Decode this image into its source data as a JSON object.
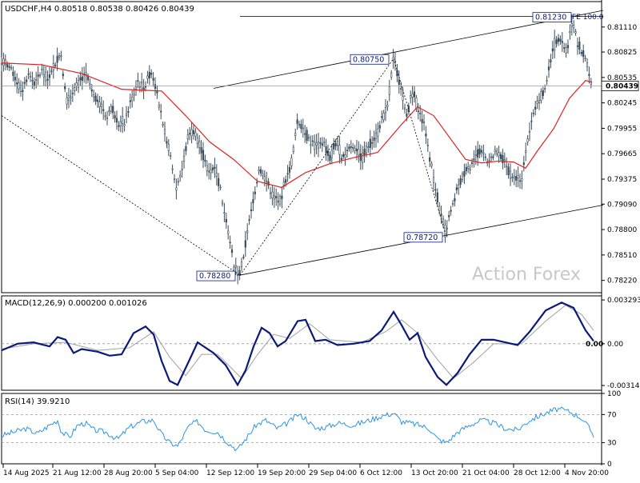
{
  "chart_data": {
    "type": "candlestick",
    "price_panel": {
      "header": "USDCHF,H4 0.80518 0.80538 0.80426 0.80439",
      "ylim": [
        0.7808,
        0.814
      ],
      "y_ticks": [
        "0.81110",
        "0.80825",
        "0.80535",
        "0.80245",
        "0.79955",
        "0.79665",
        "0.79375",
        "0.79090",
        "0.78800",
        "0.78510",
        "0.78220"
      ],
      "y_tick_values": [
        0.8111,
        0.80825,
        0.80535,
        0.80245,
        0.79955,
        0.79665,
        0.79375,
        0.7909,
        0.788,
        0.7851,
        0.7822
      ],
      "current_price": "0.80439",
      "current_price_value": 0.80439,
      "watermark": "Action Forex",
      "annotations": {
        "low": "0.78280",
        "high_mid": "0.80750",
        "low_mid": "0.78720",
        "high": "0.81230",
        "fe_label": "FE 100.0"
      },
      "series_path": [
        [
          0,
          0.8072
        ],
        [
          6,
          0.807
        ],
        [
          12,
          0.8062
        ],
        [
          19,
          0.8048
        ],
        [
          26,
          0.8038
        ],
        [
          34,
          0.8058
        ],
        [
          42,
          0.8045
        ],
        [
          50,
          0.8062
        ],
        [
          58,
          0.805
        ],
        [
          66,
          0.8068
        ],
        [
          74,
          0.8082
        ],
        [
          82,
          0.8025
        ],
        [
          90,
          0.804
        ],
        [
          98,
          0.8048
        ],
        [
          106,
          0.8056
        ],
        [
          114,
          0.8032
        ],
        [
          122,
          0.8028
        ],
        [
          130,
          0.801
        ],
        [
          138,
          0.802
        ],
        [
          146,
          0.8
        ],
        [
          154,
          0.8004
        ],
        [
          162,
          0.8026
        ],
        [
          170,
          0.805
        ],
        [
          178,
          0.8042
        ],
        [
          186,
          0.8062
        ],
        [
          194,
          0.804
        ],
        [
          202,
          0.7995
        ],
        [
          210,
          0.7968
        ],
        [
          218,
          0.7928
        ],
        [
          226,
          0.795
        ],
        [
          234,
          0.799
        ],
        [
          242,
          0.7992
        ],
        [
          250,
          0.797
        ],
        [
          258,
          0.7945
        ],
        [
          266,
          0.7952
        ],
        [
          274,
          0.7925
        ],
        [
          282,
          0.7885
        ],
        [
          290,
          0.784
        ],
        [
          298,
          0.7829
        ],
        [
          306,
          0.787
        ],
        [
          314,
          0.791
        ],
        [
          322,
          0.795
        ],
        [
          330,
          0.7938
        ],
        [
          338,
          0.792
        ],
        [
          346,
          0.791
        ],
        [
          354,
          0.7932
        ],
        [
          362,
          0.7955
        ],
        [
          370,
          0.8005
        ],
        [
          378,
          0.7995
        ],
        [
          386,
          0.798
        ],
        [
          394,
          0.7975
        ],
        [
          402,
          0.7982
        ],
        [
          410,
          0.796
        ],
        [
          418,
          0.798
        ],
        [
          426,
          0.7965
        ],
        [
          434,
          0.7972
        ],
        [
          442,
          0.7976
        ],
        [
          450,
          0.796
        ],
        [
          458,
          0.7975
        ],
        [
          466,
          0.7985
        ],
        [
          474,
          0.8
        ],
        [
          482,
          0.802
        ],
        [
          490,
          0.8075
        ],
        [
          498,
          0.8045
        ],
        [
          506,
          0.801
        ],
        [
          514,
          0.8035
        ],
        [
          522,
          0.8015
        ],
        [
          530,
          0.799
        ],
        [
          538,
          0.795
        ],
        [
          546,
          0.791
        ],
        [
          554,
          0.7878
        ],
        [
          562,
          0.79
        ],
        [
          570,
          0.7925
        ],
        [
          578,
          0.7945
        ],
        [
          586,
          0.7955
        ],
        [
          594,
          0.7965
        ],
        [
          602,
          0.7968
        ],
        [
          610,
          0.7958
        ],
        [
          618,
          0.7968
        ],
        [
          626,
          0.796
        ],
        [
          634,
          0.7948
        ],
        [
          642,
          0.7935
        ],
        [
          650,
          0.7938
        ],
        [
          658,
          0.7985
        ],
        [
          666,
          0.802
        ],
        [
          674,
          0.8032
        ],
        [
          682,
          0.8048
        ],
        [
          690,
          0.8092
        ],
        [
          698,
          0.8098
        ],
        [
          706,
          0.8085
        ],
        [
          714,
          0.8118
        ],
        [
          722,
          0.8088
        ],
        [
          730,
          0.8075
        ],
        [
          738,
          0.8044
        ]
      ],
      "ma_path": [
        [
          0,
          0.807
        ],
        [
          50,
          0.8068
        ],
        [
          100,
          0.8058
        ],
        [
          150,
          0.804
        ],
        [
          200,
          0.8038
        ],
        [
          230,
          0.801
        ],
        [
          260,
          0.798
        ],
        [
          290,
          0.796
        ],
        [
          320,
          0.7935
        ],
        [
          350,
          0.7928
        ],
        [
          380,
          0.7945
        ],
        [
          410,
          0.7955
        ],
        [
          440,
          0.7962
        ],
        [
          470,
          0.7968
        ],
        [
          500,
          0.8
        ],
        [
          520,
          0.802
        ],
        [
          540,
          0.801
        ],
        [
          560,
          0.7985
        ],
        [
          580,
          0.796
        ],
        [
          600,
          0.7956
        ],
        [
          620,
          0.7958
        ],
        [
          640,
          0.7957
        ],
        [
          655,
          0.795
        ],
        [
          670,
          0.797
        ],
        [
          690,
          0.7995
        ],
        [
          710,
          0.803
        ],
        [
          730,
          0.805
        ],
        [
          738,
          0.8048
        ]
      ],
      "zigzag": [
        {
          "from": [
            0,
            0.801
          ],
          "to": [
            298,
            0.7828
          ]
        },
        {
          "from": [
            298,
            0.7828
          ],
          "to": [
            490,
            0.8075
          ]
        },
        {
          "from": [
            490,
            0.8075
          ],
          "to": [
            556,
            0.7872
          ]
        }
      ],
      "channel_upper": {
        "from": [
          265,
          0.8041
        ],
        "to": [
          752,
          0.813
        ]
      },
      "channel_lower": {
        "from": [
          298,
          0.7828
        ],
        "to": [
          752,
          0.7908
        ]
      },
      "fe_level": {
        "from": [
          298,
          0.8123
        ],
        "to": [
          752,
          0.8123
        ]
      }
    },
    "macd_panel": {
      "header": "MACD(12,26,9) 0.000200 0.001026",
      "ylim": [
        -0.0035,
        0.0036
      ],
      "y_ticks": [
        "0.003293",
        "0.00",
        "-0.003142"
      ],
      "y_tick_values": [
        0.003293,
        0,
        -0.003142
      ],
      "side_value": "0.00",
      "main_path": [
        [
          0,
          -0.0005
        ],
        [
          20,
          0.0
        ],
        [
          40,
          0.0001
        ],
        [
          60,
          -0.0002
        ],
        [
          70,
          0.0005
        ],
        [
          80,
          0.0003
        ],
        [
          90,
          -0.0007
        ],
        [
          100,
          -0.0004
        ],
        [
          120,
          -0.0006
        ],
        [
          135,
          -0.0009
        ],
        [
          150,
          -0.0008
        ],
        [
          165,
          0.0008
        ],
        [
          180,
          0.0013
        ],
        [
          190,
          0.0007
        ],
        [
          200,
          -0.0013
        ],
        [
          210,
          -0.0028
        ],
        [
          220,
          -0.0031
        ],
        [
          235,
          -0.0012
        ],
        [
          245,
          0.0001
        ],
        [
          255,
          -0.0003
        ],
        [
          265,
          -0.0007
        ],
        [
          280,
          -0.0016
        ],
        [
          295,
          -0.0031
        ],
        [
          305,
          -0.002
        ],
        [
          315,
          -0.0002
        ],
        [
          325,
          0.0012
        ],
        [
          335,
          0.0008
        ],
        [
          345,
          -0.0002
        ],
        [
          355,
          0.0002
        ],
        [
          370,
          0.0017
        ],
        [
          380,
          0.0018
        ],
        [
          392,
          0.0002
        ],
        [
          405,
          0.0003
        ],
        [
          420,
          -0.0001
        ],
        [
          440,
          0.0
        ],
        [
          460,
          0.0002
        ],
        [
          475,
          0.001
        ],
        [
          490,
          0.0024
        ],
        [
          500,
          0.0014
        ],
        [
          510,
          0.0003
        ],
        [
          520,
          0.0008
        ],
        [
          530,
          -0.001
        ],
        [
          545,
          -0.0025
        ],
        [
          556,
          -0.0031
        ],
        [
          570,
          -0.0022
        ],
        [
          585,
          -0.0008
        ],
        [
          600,
          0.0003
        ],
        [
          615,
          0.0003
        ],
        [
          630,
          0.0001
        ],
        [
          645,
          -0.0001
        ],
        [
          660,
          0.0009
        ],
        [
          680,
          0.0025
        ],
        [
          700,
          0.0031
        ],
        [
          715,
          0.0027
        ],
        [
          730,
          0.001
        ],
        [
          740,
          0.0002
        ]
      ],
      "signal_path": [
        [
          0,
          -0.0004
        ],
        [
          40,
          0.0
        ],
        [
          80,
          0.0001
        ],
        [
          120,
          -0.0005
        ],
        [
          160,
          -0.0003
        ],
        [
          190,
          0.0009
        ],
        [
          210,
          -0.001
        ],
        [
          230,
          -0.0024
        ],
        [
          250,
          -0.0008
        ],
        [
          270,
          -0.0008
        ],
        [
          300,
          -0.0026
        ],
        [
          320,
          -0.0008
        ],
        [
          340,
          0.0007
        ],
        [
          360,
          0.0004
        ],
        [
          385,
          0.0015
        ],
        [
          410,
          0.0003
        ],
        [
          450,
          0.0001
        ],
        [
          480,
          0.0009
        ],
        [
          500,
          0.0018
        ],
        [
          520,
          0.0008
        ],
        [
          545,
          -0.0012
        ],
        [
          565,
          -0.0026
        ],
        [
          590,
          -0.0014
        ],
        [
          615,
          0.0
        ],
        [
          650,
          0.0
        ],
        [
          680,
          0.0017
        ],
        [
          705,
          0.0029
        ],
        [
          725,
          0.0022
        ],
        [
          740,
          0.001
        ]
      ]
    },
    "rsi_panel": {
      "header": "RSI(14) 39.9210",
      "ylim": [
        0,
        100
      ],
      "y_ticks": [
        "100",
        "70",
        "30",
        "0"
      ],
      "y_tick_values": [
        100,
        70,
        30,
        0
      ],
      "levels": [
        70,
        30
      ],
      "rsi_path": [
        [
          0,
          40
        ],
        [
          15,
          45
        ],
        [
          30,
          50
        ],
        [
          45,
          43
        ],
        [
          60,
          55
        ],
        [
          70,
          62
        ],
        [
          75,
          45
        ],
        [
          85,
          38
        ],
        [
          95,
          55
        ],
        [
          105,
          58
        ],
        [
          115,
          48
        ],
        [
          130,
          45
        ],
        [
          145,
          35
        ],
        [
          160,
          52
        ],
        [
          175,
          60
        ],
        [
          190,
          62
        ],
        [
          200,
          42
        ],
        [
          210,
          30
        ],
        [
          220,
          25
        ],
        [
          235,
          55
        ],
        [
          245,
          60
        ],
        [
          255,
          48
        ],
        [
          270,
          45
        ],
        [
          285,
          28
        ],
        [
          295,
          20
        ],
        [
          305,
          35
        ],
        [
          318,
          55
        ],
        [
          330,
          62
        ],
        [
          345,
          50
        ],
        [
          360,
          60
        ],
        [
          370,
          70
        ],
        [
          380,
          65
        ],
        [
          392,
          50
        ],
        [
          405,
          52
        ],
        [
          420,
          58
        ],
        [
          440,
          55
        ],
        [
          460,
          62
        ],
        [
          475,
          68
        ],
        [
          490,
          72
        ],
        [
          500,
          60
        ],
        [
          510,
          58
        ],
        [
          522,
          55
        ],
        [
          535,
          50
        ],
        [
          545,
          35
        ],
        [
          556,
          30
        ],
        [
          570,
          45
        ],
        [
          585,
          55
        ],
        [
          600,
          62
        ],
        [
          615,
          58
        ],
        [
          630,
          50
        ],
        [
          645,
          48
        ],
        [
          660,
          62
        ],
        [
          680,
          72
        ],
        [
          695,
          78
        ],
        [
          710,
          74
        ],
        [
          725,
          65
        ],
        [
          735,
          50
        ],
        [
          740,
          40
        ]
      ]
    },
    "x_ticks": [
      "14 Aug 2025",
      "21 Aug 12:00",
      "28 Aug 20:00",
      "5 Sep 04:00",
      "12 Sep 12:00",
      "19 Sep 20:00",
      "29 Sep 04:00",
      "6 Oct 12:00",
      "13 Oct 20:00",
      "21 Oct 04:00",
      "28 Oct 12:00",
      "4 Nov 20:00"
    ]
  },
  "colors": {
    "candles": "#3b4d5a",
    "ma": "#e02020",
    "macd_main": "#0a1a7a",
    "macd_signal": "#a0a0a0",
    "rsi": "#2e95e0",
    "grid_line": "#606060",
    "annotation_text": "#0a1a7a",
    "watermark": "#c8c8c8",
    "price_tag_bg": "#ffffff"
  }
}
